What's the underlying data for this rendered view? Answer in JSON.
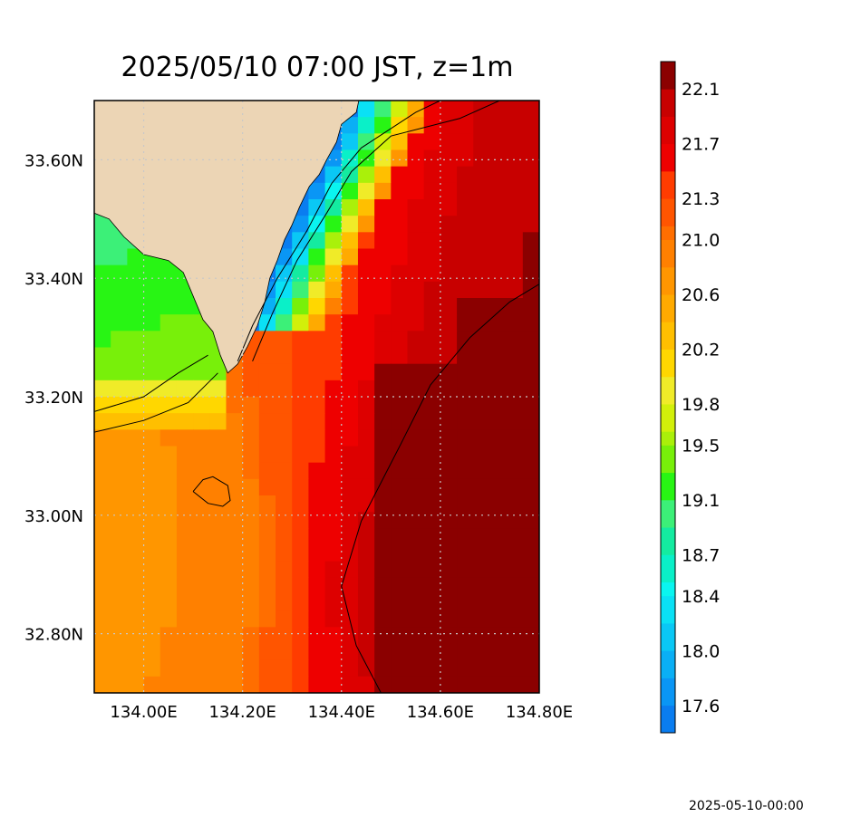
{
  "chart_data": {
    "type": "heatmap",
    "title": "2025/05/10 07:00 JST, z=1m",
    "xlabel": "",
    "ylabel": "",
    "xlim": [
      133.9,
      134.8
    ],
    "ylim": [
      32.7,
      33.7
    ],
    "grid": true,
    "x_ticks": [
      134.0,
      134.2,
      134.4,
      134.6,
      134.8
    ],
    "x_tick_labels": [
      "134.00E",
      "134.20E",
      "134.40E",
      "134.60E",
      "134.80E"
    ],
    "y_ticks": [
      32.8,
      33.0,
      33.2,
      33.4,
      33.6
    ],
    "y_tick_labels": [
      "32.80N",
      "33.00N",
      "33.20N",
      "33.40N",
      "33.60N"
    ],
    "colorbar": {
      "levels": [
        17.4,
        17.6,
        17.8,
        18.0,
        18.2,
        18.4,
        18.5,
        18.7,
        18.9,
        19.1,
        19.3,
        19.5,
        19.6,
        19.8,
        20.0,
        20.2,
        20.4,
        20.6,
        20.8,
        21.0,
        21.1,
        21.3,
        21.5,
        21.7,
        21.9,
        22.1,
        22.3
      ],
      "colors": [
        "#0a7df0",
        "#0a96f5",
        "#0aaff5",
        "#0ac8f5",
        "#0ae1f5",
        "#0af5f0",
        "#0af0c8",
        "#14eba0",
        "#3cf078",
        "#28f514",
        "#78f00a",
        "#aaf00a",
        "#d2f00a",
        "#f0eb28",
        "#ffd700",
        "#ffbf00",
        "#ffaa00",
        "#ff9600",
        "#ff8000",
        "#ff6e00",
        "#ff5500",
        "#ff3c00",
        "#ee0000",
        "#dd0000",
        "#c80000",
        "#8b0000"
      ],
      "tick_values": [
        17.6,
        18.0,
        18.4,
        18.7,
        19.1,
        19.5,
        19.8,
        20.2,
        20.6,
        21.0,
        21.3,
        21.7,
        22.1
      ],
      "tick_labels": [
        "17.6",
        "18.0",
        "18.4",
        "18.7",
        "19.1",
        "19.5",
        "19.8",
        "20.2",
        "20.6",
        "21.0",
        "21.3",
        "21.7",
        "22.1"
      ]
    },
    "field": {
      "description": "sea surface temperature at z=1m, warm (about 22.2) offshore to the southeast, cooler (about 19-20) near the coast in the northwest, coolest (about 17.6-18.5) in a narrow strip along the northeast coast",
      "coast_west_cool_min": 19.0,
      "offshore_max": 22.2,
      "mid_band_value": 20.9
    },
    "contour_levels": [
      19.3,
      20.1,
      22.0
    ]
  },
  "footer": {
    "timestamp": "2025-05-10-00:00"
  },
  "colors": {
    "land": "#ecd5b5",
    "background": "#ffffff",
    "grid": "#c8c8c8"
  }
}
